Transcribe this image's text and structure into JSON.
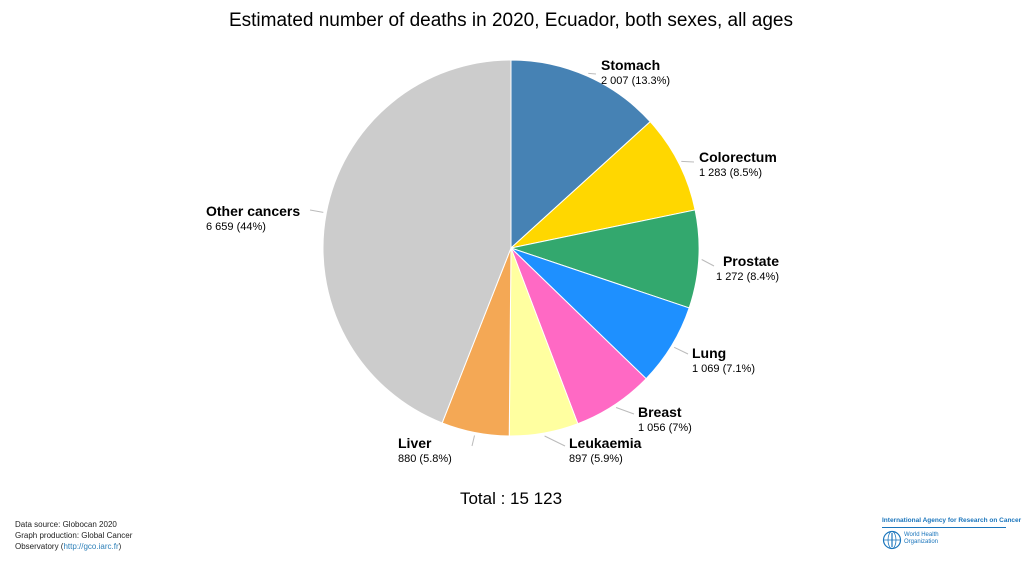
{
  "chart_data": {
    "type": "pie",
    "title": "Estimated number of deaths in 2020, Ecuador, both sexes, all ages",
    "slices": [
      {
        "name": "Stomach",
        "value": 2007,
        "value_label": "2 007 (13.3%)",
        "color": "#4682b4"
      },
      {
        "name": "Colorectum",
        "value": 1283,
        "value_label": "1 283 (8.5%)",
        "color": "#ffd700"
      },
      {
        "name": "Prostate",
        "value": 1272,
        "value_label": "1 272 (8.4%)",
        "color": "#33a86e"
      },
      {
        "name": "Lung",
        "value": 1069,
        "value_label": "1 069 (7.1%)",
        "color": "#1e90ff"
      },
      {
        "name": "Breast",
        "value": 1056,
        "value_label": "1 056 (7%)",
        "color": "#ff69c4"
      },
      {
        "name": "Leukaemia",
        "value": 897,
        "value_label": "897 (5.9%)",
        "color": "#ffffa0"
      },
      {
        "name": "Liver",
        "value": 880,
        "value_label": "880 (5.8%)",
        "color": "#f4a855"
      },
      {
        "name": "Other cancers",
        "value": 6659,
        "value_label": "6 659 (44%)",
        "color": "#cccccc"
      }
    ],
    "total_label": "Total : 15 123"
  },
  "footer": {
    "line1": "Data source: Globocan 2020",
    "line2": "Graph production: Global Cancer",
    "line3_prefix": "Observatory (",
    "link": "http://gco.iarc.fr",
    "line3_suffix": ")"
  },
  "logo": {
    "iarc": "International Agency for Research on Cancer",
    "who_line1": "World Health",
    "who_line2": "Organization"
  }
}
